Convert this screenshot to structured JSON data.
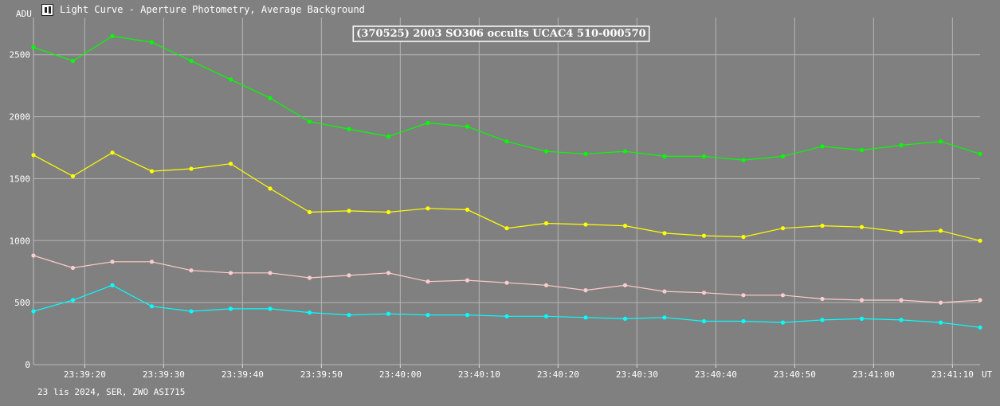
{
  "window": {
    "title": "Light Curve - Aperture Photometry, Average Background",
    "icon": "light-curve-icon"
  },
  "footer": {
    "text": "23 lis 2024, SER, ZWO ASI715"
  },
  "chart_data": {
    "type": "line",
    "title": "(370525) 2003 SO306 occults UCAC4 510-000570",
    "xlabel": "UT",
    "ylabel": "ADU",
    "ylim": [
      0,
      2800
    ],
    "yticks": [
      0,
      500,
      1000,
      1500,
      2000,
      2500
    ],
    "xlim": [
      0,
      120
    ],
    "xticks": [
      {
        "v": 6.5,
        "label": "23:39:20"
      },
      {
        "v": 16.5,
        "label": "23:39:30"
      },
      {
        "v": 26.5,
        "label": "23:39:40"
      },
      {
        "v": 36.5,
        "label": "23:39:50"
      },
      {
        "v": 46.5,
        "label": "23:40:00"
      },
      {
        "v": 56.5,
        "label": "23:40:10"
      },
      {
        "v": 66.5,
        "label": "23:40:20"
      },
      {
        "v": 76.5,
        "label": "23:40:30"
      },
      {
        "v": 86.5,
        "label": "23:40:40"
      },
      {
        "v": 96.5,
        "label": "23:40:50"
      },
      {
        "v": 106.5,
        "label": "23:41:00"
      },
      {
        "v": 116.5,
        "label": "23:41:10"
      }
    ],
    "x_unit": "seconds after 23:39:13.5",
    "grid": true,
    "series": [
      {
        "color": "#00ff00",
        "x": [
          0,
          5,
          10,
          15,
          20,
          25,
          30,
          35,
          40,
          45,
          50,
          55,
          60,
          65,
          70,
          75,
          80,
          85,
          90,
          95,
          100,
          105,
          110,
          115,
          120
        ],
        "values": [
          2560,
          2450,
          2650,
          2600,
          2450,
          2300,
          2150,
          1960,
          1900,
          1840,
          1950,
          1920,
          1800,
          1720,
          1700,
          1720,
          1680,
          1680,
          1650,
          1680,
          1760,
          1730,
          1770,
          1800,
          1700
        ]
      },
      {
        "color": "#ffff00",
        "x": [
          0,
          5,
          10,
          15,
          20,
          25,
          30,
          35,
          40,
          45,
          50,
          55,
          60,
          65,
          70,
          75,
          80,
          85,
          90,
          95,
          100,
          105,
          110,
          115,
          120
        ],
        "values": [
          1690,
          1520,
          1710,
          1560,
          1580,
          1620,
          1420,
          1230,
          1240,
          1230,
          1260,
          1250,
          1100,
          1140,
          1130,
          1120,
          1060,
          1040,
          1030,
          1100,
          1120,
          1110,
          1070,
          1080,
          1000
        ]
      },
      {
        "color": "#ffcccc",
        "x": [
          0,
          5,
          10,
          15,
          20,
          25,
          30,
          35,
          40,
          45,
          50,
          55,
          60,
          65,
          70,
          75,
          80,
          85,
          90,
          95,
          100,
          105,
          110,
          115,
          120
        ],
        "values": [
          880,
          780,
          830,
          830,
          760,
          740,
          740,
          700,
          720,
          740,
          670,
          680,
          660,
          640,
          600,
          640,
          590,
          580,
          560,
          560,
          530,
          520,
          520,
          500,
          520
        ]
      },
      {
        "color": "#00ffff",
        "x": [
          0,
          5,
          10,
          15,
          20,
          25,
          30,
          35,
          40,
          45,
          50,
          55,
          60,
          65,
          70,
          75,
          80,
          85,
          90,
          95,
          100,
          105,
          110,
          115,
          120
        ],
        "values": [
          430,
          520,
          640,
          470,
          430,
          450,
          450,
          420,
          400,
          410,
          400,
          400,
          390,
          390,
          380,
          370,
          380,
          350,
          350,
          340,
          360,
          370,
          360,
          340,
          300
        ]
      }
    ]
  }
}
